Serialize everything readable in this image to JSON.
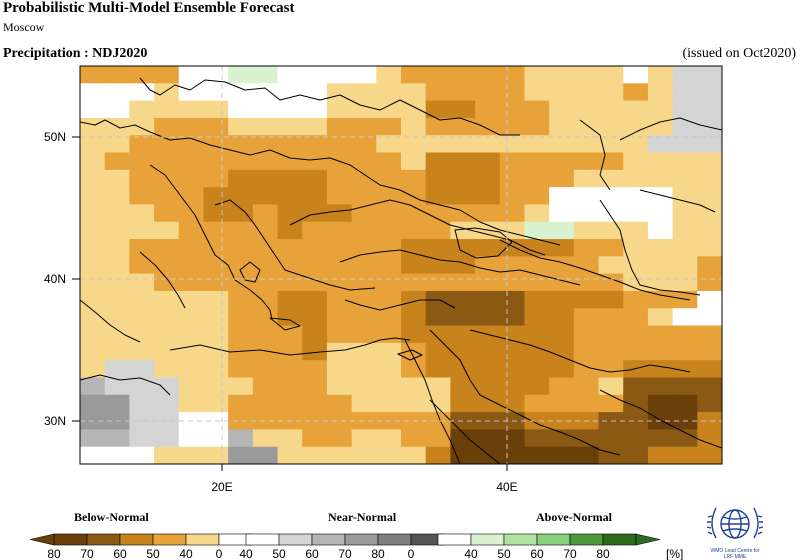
{
  "header": {
    "title": "Probabilistic Multi-Model Ensemble Forecast",
    "subtitle": "Moscow",
    "variable": "Precipitation : NDJ2020",
    "issued": "(issued on Oct2020)"
  },
  "map": {
    "lat_labels": [
      "50N",
      "40N",
      "30N"
    ],
    "lon_labels": [
      "20E",
      "40E"
    ],
    "colors": {
      "B80": "#6b3f0a",
      "B70": "#8a5a14",
      "B60": "#c8831c",
      "B50": "#e8a23a",
      "B40": "#f7d78a",
      "N40": "#d4d4d4",
      "N50": "#b5b5b5",
      "N60": "#9a9a9a",
      "N70": "#7f7f7f",
      "N80": "#555555",
      "A40": "#d9f2cf",
      "A50": "#b0e3a0",
      "A60": "#88d07c",
      "A70": "#4e9a3a",
      "A80": "#2e6b1f",
      "W": "#ffffff"
    },
    "grid": [
      "B50 B50 B50 B50 W   W   A40 A40 W   W   W   W   B40 B50 B50 B50 B50 B50 B40 B40 B40 B40 W   B40 N40 N40",
      "W   W   W   B40 W   W   W   W   W   W   B40 B40 B40 B40 B50 B50 B50 B50 B40 B40 B40 B40 B50 B40 N40 N40",
      "W   W   B40 B40 B40 B40 W   W   W   W   B40 B40 B40 B40 B60 B60 B50 B50 B50 B40 B40 B40 B40 B40 N40 N40",
      "B40 B40 B40 B50 B50 B50 B40 B40 B40 B40 B50 B50 B50 B40 B50 B50 B50 B50 B50 B40 B40 B40 B40 B40 N40 N40",
      "B40 B40 B50 B50 B50 B50 B50 B50 B50 B50 B50 B50 B40 B40 B40 B40 B40 B40 B40 B40 B40 B40 B40 N40 N40 N40",
      "B40 B50 B50 B50 B50 B50 B50 B50 B50 B50 B50 B50 B50 B40 B60 B60 B60 B50 B50 B50 B50 B50 B40 B40 B40 B40",
      "B40 B40 B50 B50 B50 B50 B60 B60 B60 B60 B50 B50 B50 B50 B60 B60 B60 B50 B50 B50 B40 B40 B40 B40 B40 B40",
      "B40 B40 B50 B50 B50 B60 B60 B60 B60 B60 B50 B50 B50 B50 B60 B60 B60 B50 B50 W   W   W   W   W   B40 B40",
      "B40 B40 B40 B50 B50 B60 B60 B50 B60 B60 B60 B50 B50 B50 B50 B50 B50 B50 B40 W   W   W   W   W   B40 B40",
      "B40 B40 B40 B40 B50 B50 B50 B50 B60 B50 B50 B50 B50 B50 B50 B40 B40 B40 A40 A40 B40 B40 B40 W   B40 B40",
      "B40 B40 B50 B50 B50 B50 B50 B50 B50 B50 B50 B50 B50 B60 B60 B60 B60 B60 B60 B60 B50 B50 B40 B40 B40 B40",
      "B40 B40 B50 B50 B50 B50 B50 B50 B50 B50 B50 B50 B50 B60 B60 B60 B50 B50 B50 B50 B50 B40 B40 B40 B40 B50",
      "B40 B40 B40 B50 B50 B50 B50 B50 B50 B50 B50 B50 B50 B50 B50 B50 B50 B50 B50 B50 B50 B50 B40 B40 B40 B50",
      "B40 B40 B40 B40 B40 B40 B50 B50 B60 B60 B50 B50 B50 B60 B70 B70 B70 B70 B60 B60 B60 B60 B50 B50 B50 W",
      "B40 B40 B40 B40 B40 B40 B50 B50 B60 B60 B50 B50 B50 B60 B70 B70 B70 B70 B60 B60 B50 B50 B50 B40 W   W",
      "B40 B40 B40 B40 B40 B40 B50 B50 B50 B60 B50 B50 B50 B60 B60 B60 B60 B60 B60 B60 B50 B50 B50 B50 B50 B50",
      "B40 B40 B40 B40 B40 B40 B50 B50 B50 B60 B40 B40 B40 B50 B60 B60 B60 B60 B60 B60 B50 B50 B50 B50 B50 B50",
      "B40 N40 N40 B40 B40 B40 B50 B50 B50 B50 B40 B40 B40 B50 B60 B60 B60 B60 B60 B60 B50 B50 B60 B60 B60 B60",
      "N50 N40 N40 N40 B40 B40 B40 B50 B50 B50 B40 B40 B40 B40 B40 B60 B60 B60 B60 B50 B50 B40 B70 B70 B70 B70",
      "N60 N60 N40 N40 B40 B40 B50 B50 B50 B50 B50 B40 B40 B40 B40 B60 B60 B60 B50 B50 B50 B50 B70 B80 B80 B70",
      "N60 N60 N40 N40 W   W   B50 B50 B50 B50 B50 B50 B50 B50 B50 B70 B70 B70 B60 B60 B60 B70 B70 B80 B80 B60",
      "N50 N50 N40 N40 W   W   N50 B40 B40 B50 B50 B40 B40 B50 B50 B80 B80 B80 B70 B70 B70 B70 B70 B70 B70 B60",
      "W   W   W   B40 B40 B40 N60 N60 B40 B40 B40 B40 B40 B40 B60 B80 B80 B80 B80 B80 B80 B70 B70 B60 B60 B60"
    ]
  },
  "legend": {
    "below_title": "Below-Normal",
    "near_title": "Near-Normal",
    "above_title": "Above-Normal",
    "below_colors": [
      "#6b3f0a",
      "#8a5a14",
      "#c8831c",
      "#e8a23a",
      "#f7d78a",
      "#ffffff"
    ],
    "near_colors": [
      "#ffffff",
      "#d4d4d4",
      "#b5b5b5",
      "#9a9a9a",
      "#7f7f7f",
      "#555555"
    ],
    "above_colors": [
      "#ffffff",
      "#d9f2cf",
      "#b0e3a0",
      "#88d07c",
      "#4e9a3a",
      "#2e6b1f"
    ],
    "ticks": [
      "80",
      "70",
      "60",
      "50",
      "40",
      "0",
      "40",
      "50",
      "60",
      "70",
      "80",
      "0",
      "40",
      "50",
      "60",
      "70",
      "80"
    ],
    "unit": "[%]"
  },
  "logo": {
    "line1": "WMO Lead Centre for",
    "line2": "LRF MME"
  }
}
